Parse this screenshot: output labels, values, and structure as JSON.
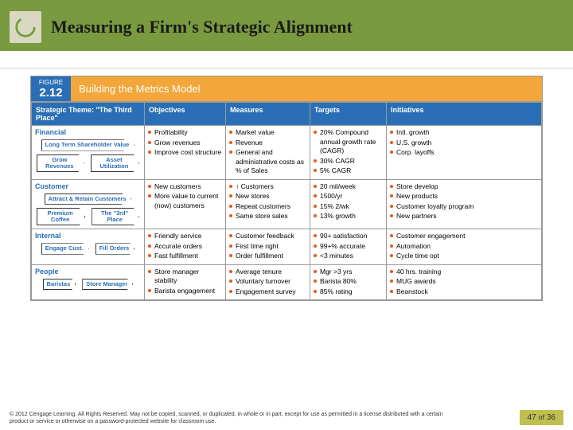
{
  "colors": {
    "header_bg": "#7a9a3f",
    "figure_header_bg": "#f3a63a",
    "figure_badge_bg": "#2a6fb5",
    "table_header_bg": "#2a6fb5",
    "bullet_color": "#e65a1f",
    "pager_bg": "#bfbf4f"
  },
  "title": "Measuring a Firm's Strategic Alignment",
  "figure": {
    "label": "FIGURE",
    "number": "2.12",
    "title": "Building the Metrics Model"
  },
  "headers": {
    "theme": "Strategic Theme: \"The Third Place\"",
    "objectives": "Objectives",
    "measures": "Measures",
    "targets": "Targets",
    "initiatives": "Initiatives"
  },
  "rows": [
    {
      "label": "Financial",
      "theme_boxes_top": "Long Term Shareholder Value",
      "theme_boxes": [
        "Grow Revenues",
        "Asset Utilization"
      ],
      "objectives": [
        "Profitability",
        "Grow revenues",
        "Improve cost structure"
      ],
      "measures": [
        "Market value",
        "Revenue",
        "General and administrative costs as % of Sales"
      ],
      "targets": [
        "20% Compound annual growth rate (CAGR)",
        "30% CAGR",
        "5% CAGR"
      ],
      "initiatives": [
        "Intl. growth",
        "U.S. growth",
        "Corp. layoffs"
      ]
    },
    {
      "label": "Customer",
      "theme_boxes_top": "Attract & Retain Customers",
      "theme_boxes": [
        "Premium Coffee",
        "The \"3rd\" Place"
      ],
      "objectives": [
        "New customers",
        "More value to current (now) customers"
      ],
      "measures": [
        "↑ Customers",
        "New stores",
        "Repeat customers",
        "Same store sales"
      ],
      "targets": [
        "20 mil/week",
        "1500/yr",
        "15% 2/wk",
        "13% growth"
      ],
      "initiatives": [
        "Store develop",
        "New products",
        "Customer loyalty program",
        "New partners"
      ]
    },
    {
      "label": "Internal",
      "theme_boxes": [
        "Engage Cust.",
        "Fill Orders"
      ],
      "objectives": [
        "Friendly service",
        "Accurate orders",
        "Fast fulfillment"
      ],
      "measures": [
        "Customer feedback",
        "First time right",
        "Order fulfillment"
      ],
      "targets": [
        "90+ satisfaction",
        "99+% accurate",
        "<3 minutes"
      ],
      "initiatives": [
        "Customer engagement",
        "Automation",
        "Cycle time opt"
      ]
    },
    {
      "label": "People",
      "theme_boxes": [
        "Baristas",
        "Store Manager"
      ],
      "objectives": [
        "Store manager stability",
        "Barista engagement"
      ],
      "measures": [
        "Average tenure",
        "Voluntary turnover",
        "Engagement survey"
      ],
      "targets": [
        "Mgr >3 yrs",
        "Barista 80%",
        "85% rating"
      ],
      "initiatives": [
        "40 hrs. training",
        "MUG awards",
        "Beanstock"
      ]
    }
  ],
  "copyright": "© 2012 Cengage Learning. All Rights Reserved. May not be copied, scanned, or duplicated, in whole or in part, except for use as permitted in a license distributed with a certain product or service or otherwise on a password-protected website for classroom use.",
  "pager": {
    "current": "47",
    "of_word": "of",
    "total": "36"
  }
}
